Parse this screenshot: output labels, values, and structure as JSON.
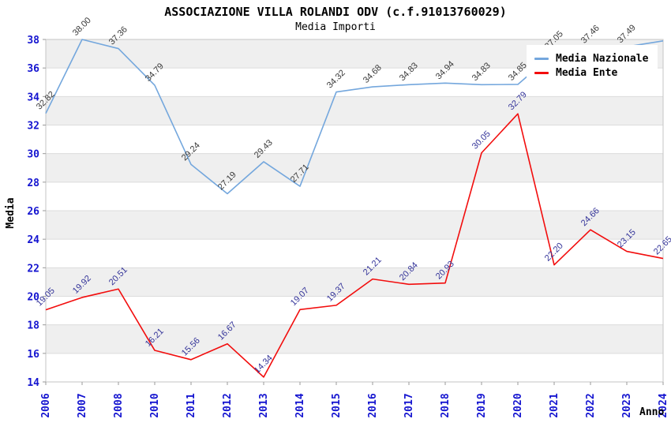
{
  "title": "ASSOCIAZIONE VILLA ROLANDI ODV (c.f.91013760029)",
  "subtitle": "Media Importi",
  "axes": {
    "y_title": "Media",
    "x_title": "Anno"
  },
  "legend": {
    "items": [
      {
        "label": "Media Nazionale",
        "color": "#74a7dd"
      },
      {
        "label": "Media Ente",
        "color": "#f20d0d"
      }
    ]
  },
  "chart_data": {
    "type": "line",
    "title": "ASSOCIAZIONE VILLA ROLANDI ODV (c.f.91013760029)",
    "subtitle": "Media Importi",
    "xlabel": "Anno",
    "ylabel": "Media",
    "x": [
      "2006",
      "2007",
      "2008",
      "2010",
      "2011",
      "2012",
      "2013",
      "2014",
      "2015",
      "2016",
      "2017",
      "2018",
      "2019",
      "2020",
      "2021",
      "2022",
      "2023",
      "2024"
    ],
    "series": [
      {
        "name": "Media Nazionale",
        "color": "#74a7dd",
        "label_color": "#3a3a3a",
        "values": [
          32.82,
          38.0,
          37.36,
          34.79,
          29.24,
          27.19,
          29.43,
          27.71,
          34.32,
          34.68,
          34.83,
          34.94,
          34.83,
          34.85,
          37.05,
          37.46,
          37.49,
          37.9
        ],
        "labels": [
          "32.82",
          "38.00",
          "37.36",
          "34.79",
          "29.24",
          "27.19",
          "29.43",
          "27.71",
          "34.32",
          "34.68",
          "34.83",
          "34.94",
          "34.83",
          "34.85",
          "37.05",
          "37.46",
          "37.49",
          ""
        ]
      },
      {
        "name": "Media Ente",
        "color": "#f20d0d",
        "label_color": "#333399",
        "values": [
          19.05,
          19.92,
          20.51,
          16.21,
          15.56,
          16.67,
          14.34,
          19.07,
          19.37,
          21.21,
          20.84,
          20.93,
          30.05,
          32.79,
          22.2,
          24.66,
          23.15,
          22.65
        ],
        "labels": [
          "19.05",
          "19.92",
          "20.51",
          "16.21",
          "15.56",
          "16.67",
          "14.34",
          "19.07",
          "19.37",
          "21.21",
          "20.84",
          "20.93",
          "30.05",
          "32.79",
          "22.20",
          "24.66",
          "23.15",
          "22.65"
        ]
      }
    ],
    "ylim": [
      14,
      38
    ],
    "ytick_step": 2,
    "legend_position": "top-right",
    "grid": "horizontal",
    "band_colors": [
      "#efefef",
      "#ffffff"
    ],
    "tick_color": "#1515d0",
    "grid_color": "#dcdcdc",
    "border_color": "#c6c6c6",
    "tick_mark_color": "#999999"
  }
}
